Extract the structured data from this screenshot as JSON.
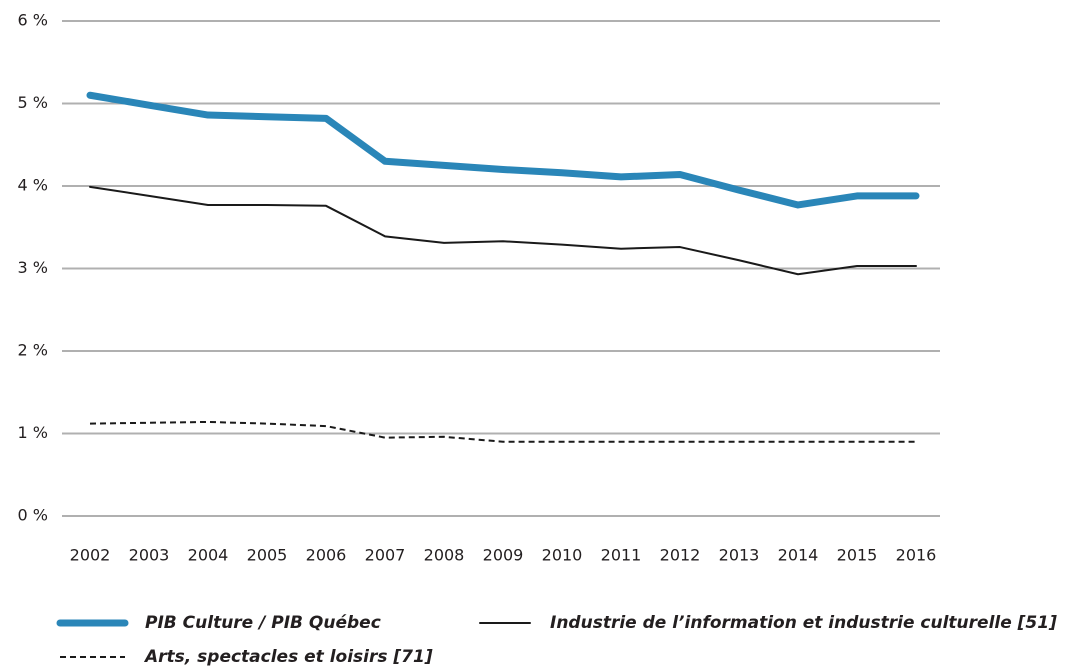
{
  "chart_data": {
    "type": "line",
    "categories": [
      "2002",
      "2003",
      "2004",
      "2005",
      "2006",
      "2007",
      "2008",
      "2009",
      "2010",
      "2011",
      "2012",
      "2013",
      "2014",
      "2015",
      "2016"
    ],
    "series": [
      {
        "name": "PIB Culture / PIB Québec",
        "color": "#2a86b8",
        "linestyle": "solid",
        "linewidth": 7,
        "values": [
          5.1,
          4.98,
          4.86,
          4.84,
          4.82,
          4.3,
          4.25,
          4.2,
          4.16,
          4.11,
          4.14,
          3.95,
          3.77,
          3.88,
          3.88
        ]
      },
      {
        "name": "Industrie de l’information et industrie culturelle [51]",
        "color": "#1a1a1a",
        "linestyle": "solid",
        "linewidth": 2,
        "values": [
          3.99,
          3.88,
          3.77,
          3.77,
          3.76,
          3.39,
          3.31,
          3.33,
          3.29,
          3.24,
          3.26,
          3.1,
          2.93,
          3.03,
          3.03
        ]
      },
      {
        "name": "Arts, spectacles et loisirs [71]",
        "color": "#1a1a1a",
        "linestyle": "dashed",
        "linewidth": 2,
        "values": [
          1.12,
          1.13,
          1.14,
          1.12,
          1.09,
          0.95,
          0.96,
          0.9,
          0.9,
          0.9,
          0.9,
          0.9,
          0.9,
          0.9,
          0.9
        ]
      }
    ],
    "ylim": [
      0,
      6
    ],
    "yticks": [
      {
        "value": 0,
        "label": "0 %"
      },
      {
        "value": 1,
        "label": "1 %"
      },
      {
        "value": 2,
        "label": "2 %"
      },
      {
        "value": 3,
        "label": "3 %"
      },
      {
        "value": 4,
        "label": "4 %"
      },
      {
        "value": 5,
        "label": "5 %"
      },
      {
        "value": 6,
        "label": "6 %"
      }
    ],
    "grid": true,
    "legend": "bottom"
  }
}
